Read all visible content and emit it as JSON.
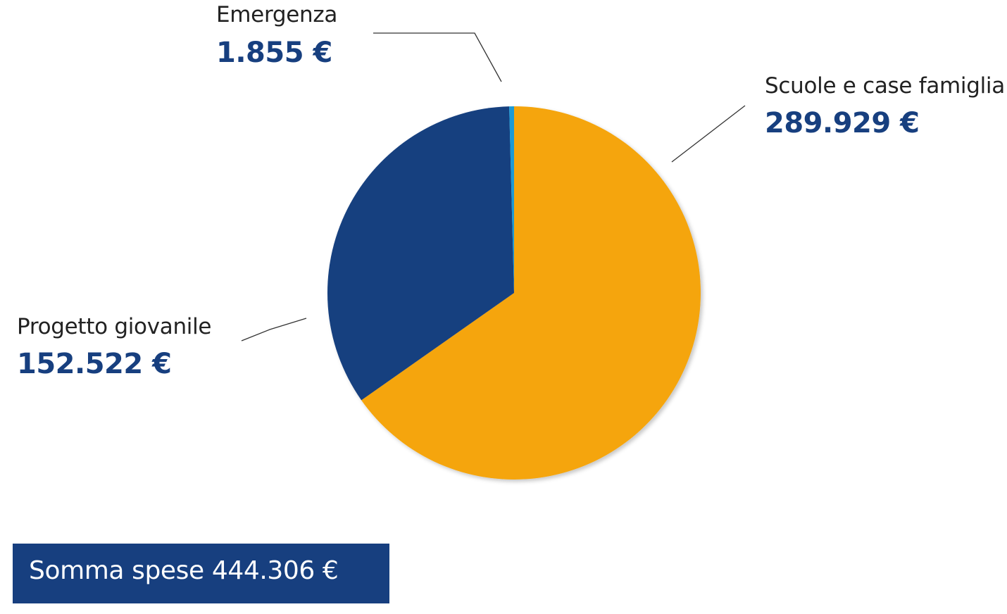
{
  "chart_data": {
    "type": "pie",
    "title": "",
    "series": [
      {
        "name": "",
        "values": [
          289929,
          152522,
          1855
        ]
      }
    ],
    "categories": [
      "Scuole e case famiglia",
      "Progetto giovanile",
      "Emergenza"
    ],
    "value_labels": [
      "289.929 €",
      "152.522 €",
      "1.855 €"
    ],
    "colors": [
      "#f5a50a",
      "#173f7f",
      "#1b9ad6"
    ],
    "legend": "none",
    "start_angle_deg": 0,
    "direction": "clockwise"
  },
  "total": {
    "label": "Somma spese 444.306 €"
  }
}
